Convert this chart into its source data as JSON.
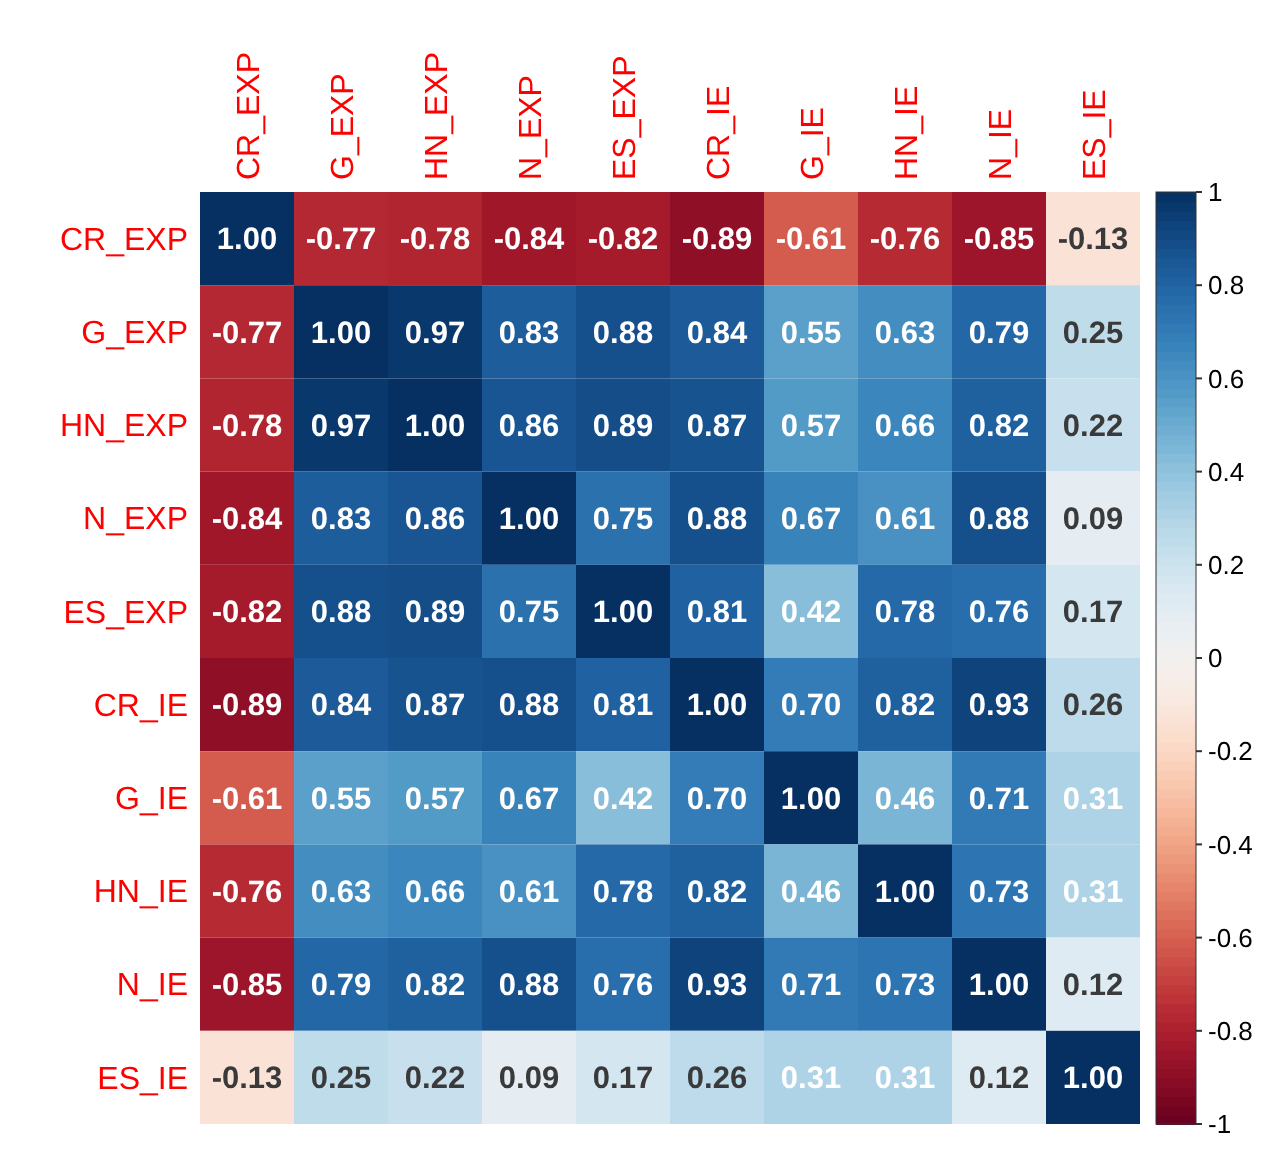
{
  "chart_data": {
    "type": "heatmap",
    "categories": [
      "CR_EXP",
      "G_EXP",
      "HN_EXP",
      "N_EXP",
      "ES_EXP",
      "CR_IE",
      "G_IE",
      "HN_IE",
      "N_IE",
      "ES_IE"
    ],
    "y_categories": [
      "CR_EXP",
      "G_EXP",
      "HN_EXP",
      "N_EXP",
      "ES_EXP",
      "CR_IE",
      "G_IE",
      "HN_IE",
      "N_IE",
      "ES_IE"
    ],
    "cells": [
      [
        1.0,
        -0.77,
        -0.78,
        -0.84,
        -0.82,
        -0.89,
        -0.61,
        -0.76,
        -0.85,
        -0.13
      ],
      [
        -0.77,
        1.0,
        0.97,
        0.83,
        0.88,
        0.84,
        0.55,
        0.63,
        0.79,
        0.25
      ],
      [
        -0.78,
        0.97,
        1.0,
        0.86,
        0.89,
        0.87,
        0.57,
        0.66,
        0.82,
        0.22
      ],
      [
        -0.84,
        0.83,
        0.86,
        1.0,
        0.75,
        0.88,
        0.67,
        0.61,
        0.88,
        0.09
      ],
      [
        -0.82,
        0.88,
        0.89,
        0.75,
        1.0,
        0.81,
        0.42,
        0.78,
        0.76,
        0.17
      ],
      [
        -0.89,
        0.84,
        0.87,
        0.88,
        0.81,
        1.0,
        0.7,
        0.82,
        0.93,
        0.26
      ],
      [
        -0.61,
        0.55,
        0.57,
        0.67,
        0.42,
        0.7,
        1.0,
        0.46,
        0.71,
        0.31
      ],
      [
        -0.76,
        0.63,
        0.66,
        0.61,
        0.78,
        0.82,
        0.46,
        1.0,
        0.73,
        0.31
      ],
      [
        -0.85,
        0.79,
        0.82,
        0.88,
        0.76,
        0.93,
        0.71,
        0.73,
        1.0,
        0.12
      ],
      [
        -0.13,
        0.25,
        0.22,
        0.09,
        0.17,
        0.26,
        0.31,
        0.31,
        0.12,
        1.0
      ]
    ],
    "cell_labels": [
      [
        "1.00",
        "-0.77",
        "-0.78",
        "-0.84",
        "-0.82",
        "-0.89",
        "-0.61",
        "-0.76",
        "-0.85",
        "-0.13"
      ],
      [
        "-0.77",
        "1.00",
        "0.97",
        "0.83",
        "0.88",
        "0.84",
        "0.55",
        "0.63",
        "0.79",
        "0.25"
      ],
      [
        "-0.78",
        "0.97",
        "1.00",
        "0.86",
        "0.89",
        "0.87",
        "0.57",
        "0.66",
        "0.82",
        "0.22"
      ],
      [
        "-0.84",
        "0.83",
        "0.86",
        "1.00",
        "0.75",
        "0.88",
        "0.67",
        "0.61",
        "0.88",
        "0.09"
      ],
      [
        "-0.82",
        "0.88",
        "0.89",
        "0.75",
        "1.00",
        "0.81",
        "0.42",
        "0.78",
        "0.76",
        "0.17"
      ],
      [
        "-0.89",
        "0.84",
        "0.87",
        "0.88",
        "0.81",
        "1.00",
        "0.70",
        "0.82",
        "0.93",
        "0.26"
      ],
      [
        "-0.61",
        "0.55",
        "0.57",
        "0.67",
        "0.42",
        "0.70",
        "1.00",
        "0.46",
        "0.71",
        "0.31"
      ],
      [
        "-0.76",
        "0.63",
        "0.66",
        "0.61",
        "0.78",
        "0.82",
        "0.46",
        "1.00",
        "0.73",
        "0.31"
      ],
      [
        "-0.85",
        "0.79",
        "0.82",
        "0.88",
        "0.76",
        "0.93",
        "0.71",
        "0.73",
        "1.00",
        "0.12"
      ],
      [
        "-0.13",
        "0.25",
        "0.22",
        "0.09",
        "0.17",
        "0.26",
        "0.31",
        "0.31",
        "0.12",
        "1.00"
      ]
    ],
    "clim": [
      -1,
      1
    ],
    "cticks": [
      -1,
      -0.8,
      -0.6,
      -0.4,
      -0.2,
      0,
      0.2,
      0.4,
      0.6,
      0.8,
      1
    ]
  }
}
